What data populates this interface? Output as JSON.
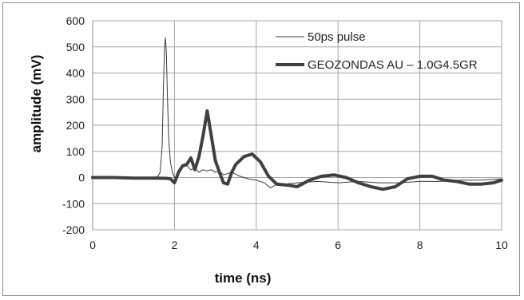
{
  "chart_data": {
    "type": "line",
    "xlabel": "time (ns)",
    "ylabel": "amplitude (mV)",
    "xlim": [
      0,
      10
    ],
    "ylim": [
      -200,
      600
    ],
    "xticks": [
      0,
      2,
      4,
      6,
      8,
      10
    ],
    "yticks": [
      -200,
      -100,
      0,
      100,
      200,
      300,
      400,
      500,
      600
    ],
    "grid": "both",
    "legend_position": "top-right",
    "series": [
      {
        "name": "50ps pulse",
        "line": "thin",
        "color": "#3a3a3a",
        "x": [
          0,
          0.5,
          1.0,
          1.5,
          1.6,
          1.65,
          1.7,
          1.73,
          1.76,
          1.78,
          1.8,
          1.83,
          1.86,
          1.9,
          1.95,
          2.0,
          2.05,
          2.1,
          2.2,
          2.3,
          2.4,
          2.5,
          2.6,
          2.7,
          2.8,
          2.9,
          3.0,
          3.1,
          3.2,
          3.4,
          3.6,
          3.8,
          4.0,
          4.2,
          4.35,
          4.5,
          4.7,
          5.0,
          5.5,
          6.0,
          6.5,
          7.0,
          7.5,
          8.0,
          8.5,
          9.0,
          9.5,
          10.0
        ],
        "y": [
          0,
          0,
          0,
          0,
          5,
          20,
          120,
          350,
          500,
          535,
          480,
          300,
          150,
          60,
          20,
          0,
          -5,
          30,
          40,
          45,
          30,
          35,
          20,
          30,
          25,
          30,
          20,
          25,
          10,
          20,
          5,
          -5,
          -10,
          -20,
          -40,
          -25,
          -25,
          -20,
          -15,
          -20,
          -15,
          -20,
          -20,
          -15,
          -15,
          -10,
          -10,
          -5
        ]
      },
      {
        "name": "GEOZONDAS AU – 1.0G4.5GR",
        "line": "thick",
        "color": "#404040",
        "x": [
          0,
          0.5,
          1.0,
          1.5,
          1.8,
          1.9,
          2.0,
          2.1,
          2.2,
          2.3,
          2.4,
          2.5,
          2.6,
          2.7,
          2.8,
          2.9,
          3.0,
          3.1,
          3.2,
          3.3,
          3.4,
          3.5,
          3.7,
          3.9,
          4.1,
          4.3,
          4.5,
          4.8,
          5.0,
          5.3,
          5.6,
          5.9,
          6.2,
          6.5,
          6.8,
          7.1,
          7.4,
          7.7,
          8.0,
          8.3,
          8.6,
          8.9,
          9.2,
          9.5,
          9.8,
          10.0
        ],
        "y": [
          0,
          0,
          -2,
          -2,
          -3,
          -5,
          -20,
          20,
          45,
          50,
          75,
          30,
          80,
          160,
          255,
          160,
          65,
          20,
          -20,
          -25,
          20,
          50,
          80,
          90,
          60,
          5,
          -25,
          -30,
          -35,
          -10,
          5,
          10,
          0,
          -20,
          -35,
          -45,
          -35,
          -5,
          5,
          5,
          -10,
          -15,
          -25,
          -25,
          -20,
          -10
        ]
      }
    ]
  }
}
